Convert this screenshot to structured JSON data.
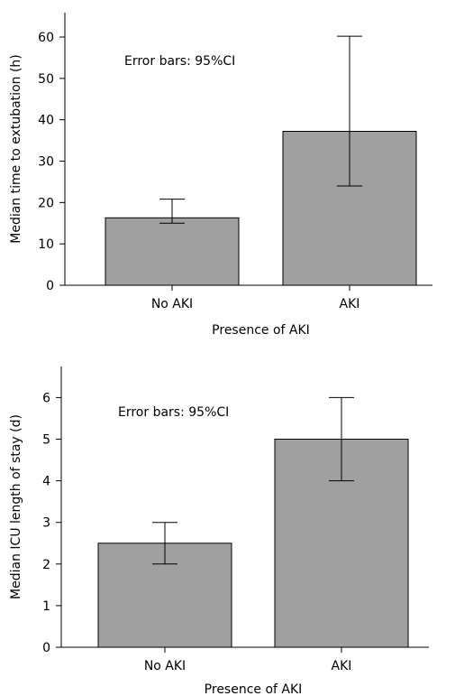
{
  "chart_data": [
    {
      "type": "bar",
      "categories": [
        "No AKI",
        "AKI"
      ],
      "values": [
        16.3,
        37.2
      ],
      "error_low": [
        15.0,
        24.0
      ],
      "error_high": [
        20.8,
        60.2
      ],
      "xlabel": "Presence of AKI",
      "ylabel": "Median time to extubation (h)",
      "annotation": "Error bars: 95%CI",
      "ylim": [
        0,
        65
      ],
      "yticks": [
        0,
        10,
        20,
        30,
        40,
        50,
        60
      ],
      "bar_color": "#a0a0a0",
      "grid": false
    },
    {
      "type": "bar",
      "categories": [
        "No AKI",
        "AKI"
      ],
      "values": [
        2.5,
        5.0
      ],
      "error_low": [
        2.0,
        4.0
      ],
      "error_high": [
        3.0,
        6.0
      ],
      "xlabel": "Presence of AKI",
      "ylabel": "Median ICU length of stay (d)",
      "annotation": "Error bars: 95%CI",
      "ylim": [
        0,
        6.6
      ],
      "yticks": [
        0,
        1,
        2,
        3,
        4,
        5,
        6
      ],
      "bar_color": "#a0a0a0",
      "grid": false
    }
  ]
}
